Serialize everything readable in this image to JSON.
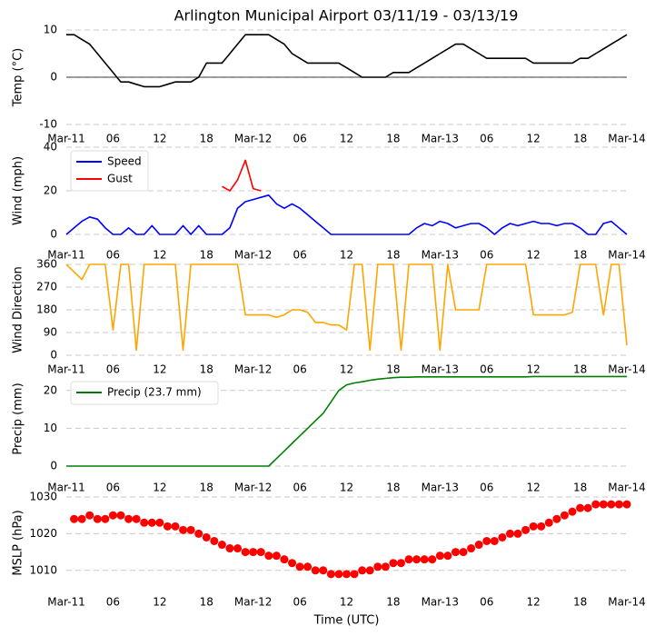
{
  "title": "Arlington Municipal Airport 03/11/19 - 03/13/19",
  "chart_data": [
    {
      "type": "line",
      "ylabel": "Temp (°C)",
      "grid": true,
      "zero_line": true,
      "xlim": [
        0,
        72
      ],
      "xticks": [
        {
          "value": 0,
          "label": "Mar-11"
        },
        {
          "value": 6,
          "label": "06"
        },
        {
          "value": 12,
          "label": "12"
        },
        {
          "value": 18,
          "label": "18"
        },
        {
          "value": 24,
          "label": "Mar-12"
        },
        {
          "value": 30,
          "label": "06"
        },
        {
          "value": 36,
          "label": "12"
        },
        {
          "value": 42,
          "label": "18"
        },
        {
          "value": 48,
          "label": "Mar-13"
        },
        {
          "value": 54,
          "label": "06"
        },
        {
          "value": 60,
          "label": "12"
        },
        {
          "value": 66,
          "label": "18"
        },
        {
          "value": 72,
          "label": "Mar-14"
        }
      ],
      "ylim": [
        -10,
        10
      ],
      "yticks": [
        -10,
        0,
        10
      ],
      "x": [
        0,
        1,
        2,
        3,
        4,
        5,
        6,
        7,
        8,
        9,
        10,
        11,
        12,
        13,
        14,
        15,
        16,
        17,
        18,
        19,
        20,
        21,
        22,
        23,
        24,
        25,
        26,
        27,
        28,
        29,
        30,
        31,
        32,
        33,
        34,
        35,
        36,
        37,
        38,
        39,
        40,
        41,
        42,
        43,
        44,
        45,
        46,
        47,
        48,
        49,
        50,
        51,
        52,
        53,
        54,
        55,
        56,
        57,
        58,
        59,
        60,
        61,
        62,
        63,
        64,
        65,
        66,
        67,
        68,
        69,
        70,
        71,
        72
      ],
      "series": [
        {
          "color": "#000000",
          "values": [
            9,
            9,
            8,
            7,
            5,
            3,
            1,
            -1,
            -1,
            -1.5,
            -2,
            -2,
            -2,
            -1.5,
            -1,
            -1,
            -1,
            0,
            3,
            3,
            3,
            5,
            7,
            9,
            9,
            9,
            9,
            8,
            7,
            5,
            4,
            3,
            3,
            3,
            3,
            3,
            2,
            1,
            0,
            0,
            0,
            0,
            1,
            1,
            1,
            2,
            3,
            4,
            5,
            6,
            7,
            7,
            6,
            5,
            4,
            4,
            4,
            4,
            4,
            4,
            3,
            3,
            3,
            3,
            3,
            3,
            4,
            4,
            5,
            6,
            7,
            8,
            9
          ]
        }
      ]
    },
    {
      "type": "line",
      "ylabel": "Wind (mph)",
      "grid": true,
      "legend": "upper left",
      "xlim": [
        0,
        72
      ],
      "xticks": [
        {
          "value": 0,
          "label": "Mar-11"
        },
        {
          "value": 6,
          "label": "06"
        },
        {
          "value": 12,
          "label": "12"
        },
        {
          "value": 18,
          "label": "18"
        },
        {
          "value": 24,
          "label": "Mar-12"
        },
        {
          "value": 30,
          "label": "06"
        },
        {
          "value": 36,
          "label": "12"
        },
        {
          "value": 42,
          "label": "18"
        },
        {
          "value": 48,
          "label": "Mar-13"
        },
        {
          "value": 54,
          "label": "06"
        },
        {
          "value": 60,
          "label": "12"
        },
        {
          "value": 66,
          "label": "18"
        },
        {
          "value": 72,
          "label": "Mar-14"
        }
      ],
      "ylim": [
        0,
        40
      ],
      "yticks": [
        0,
        20,
        40
      ],
      "x": [
        0,
        1,
        2,
        3,
        4,
        5,
        6,
        7,
        8,
        9,
        10,
        11,
        12,
        13,
        14,
        15,
        16,
        17,
        18,
        19,
        20,
        21,
        22,
        23,
        24,
        25,
        26,
        27,
        28,
        29,
        30,
        31,
        32,
        33,
        34,
        35,
        36,
        37,
        38,
        39,
        40,
        41,
        42,
        43,
        44,
        45,
        46,
        47,
        48,
        49,
        50,
        51,
        52,
        53,
        54,
        55,
        56,
        57,
        58,
        59,
        60,
        61,
        62,
        63,
        64,
        65,
        66,
        67,
        68,
        69,
        70,
        71,
        72
      ],
      "series": [
        {
          "name": "Speed",
          "color": "#0000ff",
          "values": [
            0,
            3,
            6,
            8,
            7,
            3,
            0,
            0,
            3,
            0,
            0,
            4,
            0,
            0,
            0,
            4,
            0,
            4,
            0,
            0,
            0,
            3,
            12,
            15,
            16,
            17,
            18,
            14,
            12,
            14,
            12,
            9,
            6,
            3,
            0,
            0,
            0,
            0,
            0,
            0,
            0,
            0,
            0,
            0,
            0,
            3,
            5,
            4,
            6,
            5,
            3,
            4,
            5,
            5,
            3,
            0,
            3,
            5,
            4,
            5,
            6,
            5,
            5,
            4,
            5,
            5,
            3,
            0,
            0,
            5,
            6,
            3,
            0
          ]
        },
        {
          "name": "Gust",
          "color": "#ff0000",
          "values": [
            null,
            null,
            null,
            null,
            null,
            null,
            null,
            null,
            null,
            null,
            null,
            null,
            null,
            null,
            null,
            null,
            null,
            null,
            null,
            null,
            22,
            20,
            25,
            34,
            21,
            20,
            null,
            null,
            null,
            null,
            null,
            null,
            null,
            null,
            null,
            null,
            null,
            null,
            null,
            null,
            null,
            null,
            null,
            null,
            null,
            null,
            null,
            null,
            null,
            null,
            null,
            null,
            null,
            null,
            null,
            null,
            null,
            null,
            null,
            null,
            null,
            null,
            null,
            null,
            null,
            null,
            null,
            null,
            null,
            null,
            null,
            null,
            null
          ]
        }
      ]
    },
    {
      "type": "line",
      "ylabel": "Wind Direction",
      "grid": true,
      "xlim": [
        0,
        72
      ],
      "xticks": [
        {
          "value": 0,
          "label": "Mar-11"
        },
        {
          "value": 6,
          "label": "06"
        },
        {
          "value": 12,
          "label": "12"
        },
        {
          "value": 18,
          "label": "18"
        },
        {
          "value": 24,
          "label": "Mar-12"
        },
        {
          "value": 30,
          "label": "06"
        },
        {
          "value": 36,
          "label": "12"
        },
        {
          "value": 42,
          "label": "18"
        },
        {
          "value": 48,
          "label": "Mar-13"
        },
        {
          "value": 54,
          "label": "06"
        },
        {
          "value": 60,
          "label": "12"
        },
        {
          "value": 66,
          "label": "18"
        },
        {
          "value": 72,
          "label": "Mar-14"
        }
      ],
      "ylim": [
        0,
        360
      ],
      "yticks": [
        0,
        90,
        180,
        270,
        360
      ],
      "x": [
        0,
        1,
        2,
        3,
        4,
        5,
        6,
        7,
        8,
        9,
        10,
        11,
        12,
        13,
        14,
        15,
        16,
        17,
        18,
        19,
        20,
        21,
        22,
        23,
        24,
        25,
        26,
        27,
        28,
        29,
        30,
        31,
        32,
        33,
        34,
        35,
        36,
        37,
        38,
        39,
        40,
        41,
        42,
        43,
        44,
        45,
        46,
        47,
        48,
        49,
        50,
        51,
        52,
        53,
        54,
        55,
        56,
        57,
        58,
        59,
        60,
        61,
        62,
        63,
        64,
        65,
        66,
        67,
        68,
        69,
        70,
        71,
        72
      ],
      "series": [
        {
          "color": "#ffa500",
          "values": [
            360,
            330,
            300,
            360,
            360,
            360,
            100,
            360,
            360,
            20,
            360,
            360,
            360,
            360,
            360,
            20,
            360,
            360,
            360,
            360,
            360,
            360,
            360,
            160,
            160,
            160,
            160,
            150,
            160,
            180,
            180,
            170,
            130,
            130,
            120,
            120,
            100,
            360,
            360,
            20,
            360,
            360,
            360,
            20,
            360,
            360,
            360,
            360,
            20,
            360,
            180,
            180,
            180,
            180,
            360,
            360,
            360,
            360,
            360,
            360,
            160,
            160,
            160,
            160,
            160,
            170,
            360,
            360,
            360,
            160,
            360,
            360,
            40
          ]
        }
      ]
    },
    {
      "type": "line",
      "ylabel": "Precip (mm)",
      "grid": true,
      "legend": "upper left",
      "xlim": [
        0,
        72
      ],
      "xticks": [
        {
          "value": 0,
          "label": "Mar-11"
        },
        {
          "value": 6,
          "label": "06"
        },
        {
          "value": 12,
          "label": "12"
        },
        {
          "value": 18,
          "label": "18"
        },
        {
          "value": 24,
          "label": "Mar-12"
        },
        {
          "value": 30,
          "label": "06"
        },
        {
          "value": 36,
          "label": "12"
        },
        {
          "value": 42,
          "label": "18"
        },
        {
          "value": 48,
          "label": "Mar-13"
        },
        {
          "value": 54,
          "label": "06"
        },
        {
          "value": 60,
          "label": "12"
        },
        {
          "value": 66,
          "label": "18"
        },
        {
          "value": 72,
          "label": "Mar-14"
        }
      ],
      "ylim": [
        0,
        25
      ],
      "yticks": [
        0,
        10,
        20
      ],
      "x": [
        0,
        1,
        2,
        3,
        4,
        5,
        6,
        7,
        8,
        9,
        10,
        11,
        12,
        13,
        14,
        15,
        16,
        17,
        18,
        19,
        20,
        21,
        22,
        23,
        24,
        25,
        26,
        27,
        28,
        29,
        30,
        31,
        32,
        33,
        34,
        35,
        36,
        37,
        38,
        39,
        40,
        41,
        42,
        43,
        44,
        45,
        46,
        47,
        48,
        49,
        50,
        51,
        52,
        53,
        54,
        55,
        56,
        57,
        58,
        59,
        60,
        61,
        62,
        63,
        64,
        65,
        66,
        67,
        68,
        69,
        70,
        71,
        72
      ],
      "series": [
        {
          "name": "Precip (23.7 mm)",
          "color": "#008000",
          "values": [
            0,
            0,
            0,
            0,
            0,
            0,
            0,
            0,
            0,
            0,
            0,
            0,
            0,
            0,
            0,
            0,
            0,
            0,
            0,
            0,
            0,
            0,
            0,
            0,
            0,
            0,
            0,
            2,
            4,
            6,
            8,
            10,
            12,
            14,
            17,
            20,
            21.5,
            22,
            22.3,
            22.7,
            23,
            23.2,
            23.4,
            23.5,
            23.5,
            23.6,
            23.6,
            23.6,
            23.6,
            23.6,
            23.6,
            23.6,
            23.6,
            23.6,
            23.6,
            23.6,
            23.6,
            23.6,
            23.6,
            23.6,
            23.7,
            23.7,
            23.7,
            23.7,
            23.7,
            23.7,
            23.7,
            23.7,
            23.7,
            23.7,
            23.7,
            23.7,
            23.7
          ]
        }
      ]
    },
    {
      "type": "scatter",
      "ylabel": "MSLP (hPa)",
      "xlabel": "Time (UTC)",
      "grid": true,
      "xlim": [
        0,
        72
      ],
      "xticks": [
        {
          "value": 0,
          "label": "Mar-11"
        },
        {
          "value": 6,
          "label": "06"
        },
        {
          "value": 12,
          "label": "12"
        },
        {
          "value": 18,
          "label": "18"
        },
        {
          "value": 24,
          "label": "Mar-12"
        },
        {
          "value": 30,
          "label": "06"
        },
        {
          "value": 36,
          "label": "12"
        },
        {
          "value": 42,
          "label": "18"
        },
        {
          "value": 48,
          "label": "Mar-13"
        },
        {
          "value": 54,
          "label": "06"
        },
        {
          "value": 60,
          "label": "12"
        },
        {
          "value": 66,
          "label": "18"
        },
        {
          "value": 72,
          "label": "Mar-14"
        }
      ],
      "ylim": [
        1005,
        1030
      ],
      "yticks": [
        1010,
        1020,
        1030
      ],
      "x": [
        1,
        2,
        3,
        4,
        5,
        6,
        7,
        8,
        9,
        10,
        11,
        12,
        13,
        14,
        15,
        16,
        17,
        18,
        19,
        20,
        21,
        22,
        23,
        24,
        25,
        26,
        27,
        28,
        29,
        30,
        31,
        32,
        33,
        34,
        35,
        36,
        37,
        38,
        39,
        40,
        41,
        42,
        43,
        44,
        45,
        46,
        47,
        48,
        49,
        50,
        51,
        52,
        53,
        54,
        55,
        56,
        57,
        58,
        59,
        60,
        61,
        62,
        63,
        64,
        65,
        66,
        67,
        68,
        69,
        70,
        71,
        72
      ],
      "series": [
        {
          "color": "#ff0000",
          "values": [
            1024,
            1024,
            1025,
            1024,
            1024,
            1025,
            1025,
            1024,
            1024,
            1023,
            1023,
            1023,
            1022,
            1022,
            1021,
            1021,
            1020,
            1019,
            1018,
            1017,
            1016,
            1016,
            1015,
            1015,
            1015,
            1014,
            1014,
            1013,
            1012,
            1011,
            1011,
            1010,
            1010,
            1009,
            1009,
            1009,
            1009,
            1010,
            1010,
            1011,
            1011,
            1012,
            1012,
            1013,
            1013,
            1013,
            1013,
            1014,
            1014,
            1015,
            1015,
            1016,
            1017,
            1018,
            1018,
            1019,
            1020,
            1020,
            1021,
            1022,
            1022,
            1023,
            1024,
            1025,
            1026,
            1027,
            1027,
            1028,
            1028,
            1028,
            1028,
            1028
          ]
        }
      ]
    }
  ]
}
